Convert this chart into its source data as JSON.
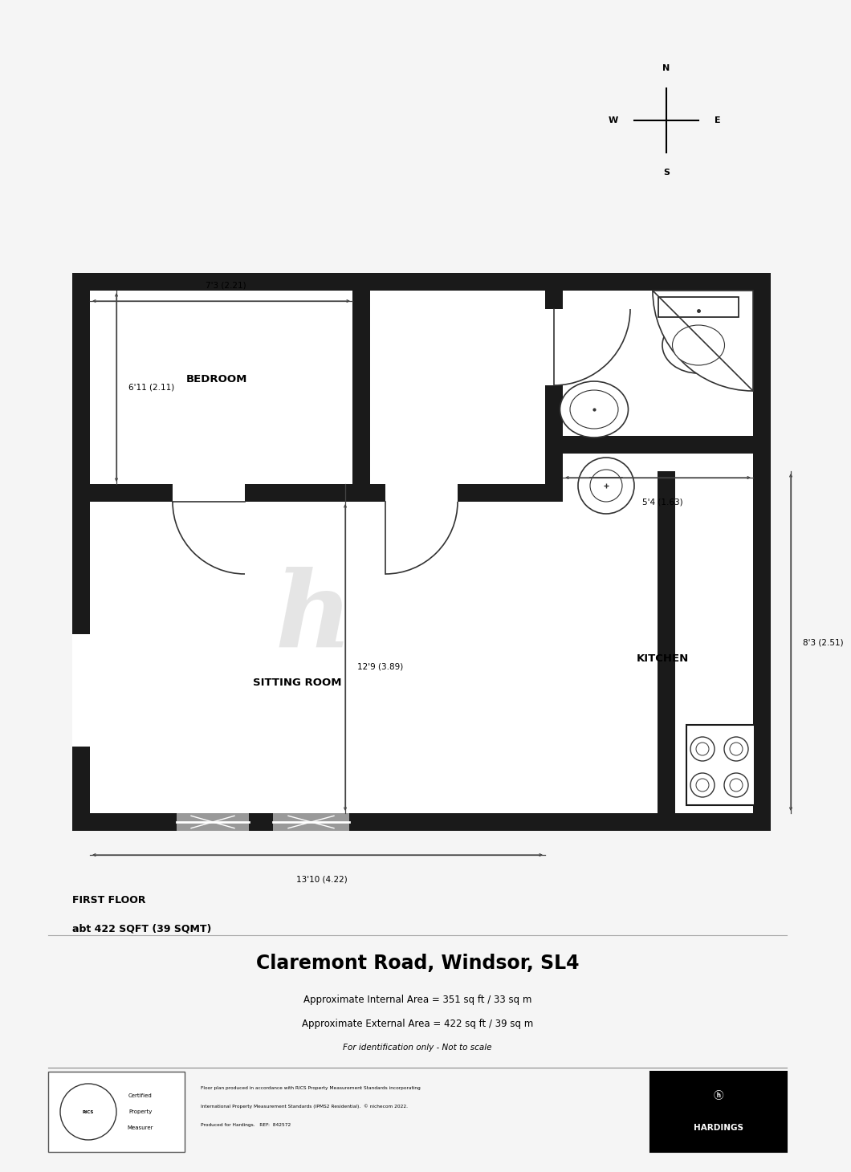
{
  "title": "Claremont Road, Windsor, SL4",
  "subtitle1": "Approximate Internal Area = 351 sq ft / 33 sq m",
  "subtitle2": "Approximate External Area = 422 sq ft / 39 sq m",
  "subtitle3": "For identification only - Not to scale",
  "floor_label1": "FIRST FLOOR",
  "floor_label2": "abt 422 SQFT (39 SQMT)",
  "dims": {
    "bedroom_width": "7'3 (2.21)",
    "bedroom_height": "6'11 (2.11)",
    "sitting_height": "12'9 (3.89)",
    "sitting_width": "13'10 (4.22)",
    "kitchen_height": "8'3 (2.51)",
    "bath_width": "5'4 (1.63)"
  },
  "bg_color": "#f5f5f5",
  "wall_color": "#1a1a1a"
}
